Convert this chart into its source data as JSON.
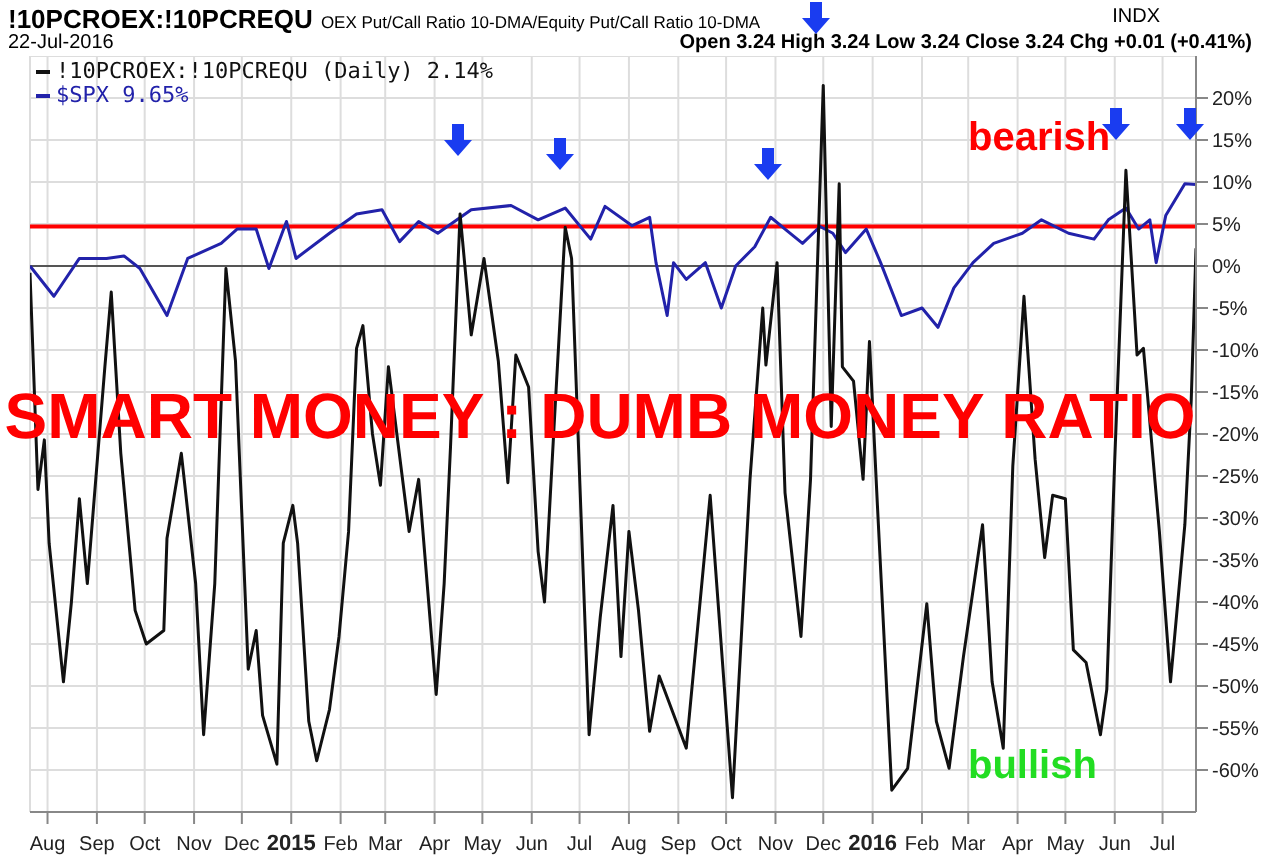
{
  "chart_data": {
    "type": "line",
    "title": "!10PCROEX:!10PCREQU",
    "subtitle": "OEX Put/Call Ratio 10-DMA/Equity Put/Call Ratio 10-DMA",
    "annotations": [
      "INDX",
      "22-Jul-2016",
      "Open 3.24 High 3.24 Low 3.24 Close 3.24 Chg +0.01 (+0.41%)",
      "SMART MONEY : DUMB MONEY RATIO",
      "bearish",
      "bullish"
    ],
    "series": [
      {
        "name": "!10PCROEX:!10PCREQU (Daily) 2.14%",
        "color": "#111111",
        "x": [
          "2014-07-21",
          "2014-07-26",
          "2014-07-30",
          "2014-08-02",
          "2014-08-11",
          "2014-08-16",
          "2014-08-21",
          "2014-08-26",
          "2014-09-06",
          "2014-09-10",
          "2014-09-16",
          "2014-09-25",
          "2014-10-02",
          "2014-10-13",
          "2014-10-15",
          "2014-10-24",
          "2014-11-02",
          "2014-11-07",
          "2014-11-14",
          "2014-11-21",
          "2014-11-27",
          "2014-12-05",
          "2014-12-10",
          "2014-12-14",
          "2014-12-23",
          "2014-12-27",
          "2015-01-02",
          "2015-01-05",
          "2015-01-12",
          "2015-01-17",
          "2015-01-25",
          "2015-01-31",
          "2015-02-06",
          "2015-02-11",
          "2015-02-15",
          "2015-02-21",
          "2015-02-26",
          "2015-03-03",
          "2015-03-16",
          "2015-03-22",
          "2015-04-02",
          "2015-04-07",
          "2015-04-11",
          "2015-04-17",
          "2015-04-24",
          "2015-05-02",
          "2015-05-11",
          "2015-05-17",
          "2015-05-22",
          "2015-05-30",
          "2015-06-05",
          "2015-06-09",
          "2015-06-15",
          "2015-06-22",
          "2015-06-26",
          "2015-07-07",
          "2015-07-14",
          "2015-07-22",
          "2015-07-27",
          "2015-08-01",
          "2015-08-07",
          "2015-08-14",
          "2015-08-20",
          "2015-09-06",
          "2015-09-21",
          "2015-10-05",
          "2015-10-16",
          "2015-10-24",
          "2015-10-26",
          "2015-11-02",
          "2015-11-07",
          "2015-11-17",
          "2015-11-23",
          "2015-12-01",
          "2015-12-06",
          "2015-12-11",
          "2015-12-13",
          "2015-12-20",
          "2015-12-26",
          "2015-12-30",
          "2016-01-04",
          "2016-01-13",
          "2016-01-23",
          "2016-02-04",
          "2016-02-10",
          "2016-02-18",
          "2016-02-27",
          "2016-03-10",
          "2016-03-16",
          "2016-03-23",
          "2016-03-29",
          "2016-04-05",
          "2016-04-12",
          "2016-04-18",
          "2016-04-23",
          "2016-05-01",
          "2016-05-06",
          "2016-05-14",
          "2016-05-23",
          "2016-05-27",
          "2016-06-01",
          "2016-06-08",
          "2016-06-15",
          "2016-06-19",
          "2016-06-29",
          "2016-07-06",
          "2016-07-15",
          "2016-07-19",
          "2016-07-22"
        ],
        "values": [
          -0.8,
          -26.6,
          -20.7,
          -33,
          -49.5,
          -40,
          -27.7,
          -37.8,
          -12,
          -3.1,
          -22.3,
          -41,
          -45,
          -43.4,
          -32.4,
          -22.3,
          -37.8,
          -55.8,
          -37.8,
          -0.3,
          -11.3,
          -48,
          -43.4,
          -53.5,
          -59.3,
          -33,
          -28.5,
          -33,
          -54.2,
          -58.9,
          -52.8,
          -44.1,
          -31.6,
          -9.8,
          -7.1,
          -20,
          -26.1,
          -12,
          -31.6,
          -25.4,
          -51,
          -37.8,
          -21.5,
          6.2,
          -8.2,
          0.9,
          -11.3,
          -25.8,
          -10.6,
          -14.4,
          -34,
          -40,
          -19.1,
          4.6,
          0.9,
          -55.8,
          -41.8,
          -28.5,
          -46.5,
          -31.6,
          -41,
          -55.4,
          -48.8,
          -57.4,
          -27.3,
          -63.3,
          -25.4,
          -5,
          -11.8,
          0.4,
          -27,
          -44.1,
          -25.4,
          21.5,
          -19.1,
          9.8,
          -12,
          -13.7,
          -25.4,
          -9,
          -28.5,
          -62.4,
          -59.8,
          -40.2,
          -54.2,
          -59.8,
          -46.5,
          -30.8,
          -49.5,
          -57.4,
          -23.8,
          -3.6,
          -23,
          -34.7,
          -27.3,
          -27.7,
          -45.7,
          -47.2,
          -55.8,
          -50.4,
          -23,
          11.4,
          -10.6,
          -9.8,
          -31.6,
          -49.5,
          -30.8,
          -16,
          2.1
        ]
      },
      {
        "name": "$SPX 9.65%",
        "color": "#2222aa",
        "x": [
          "2014-07-21",
          "2014-08-05",
          "2014-08-21",
          "2014-09-07",
          "2014-09-18",
          "2014-09-28",
          "2014-10-15",
          "2014-10-28",
          "2014-11-18",
          "2014-11-28",
          "2014-12-10",
          "2014-12-18",
          "2014-12-29",
          "2015-01-04",
          "2015-01-25",
          "2015-02-11",
          "2015-02-27",
          "2015-03-10",
          "2015-03-22",
          "2015-04-03",
          "2015-04-24",
          "2015-05-19",
          "2015-06-05",
          "2015-06-22",
          "2015-07-08",
          "2015-07-17",
          "2015-08-03",
          "2015-08-14",
          "2015-08-18",
          "2015-08-25",
          "2015-08-29",
          "2015-09-06",
          "2015-09-18",
          "2015-09-28",
          "2015-10-07",
          "2015-10-19",
          "2015-10-29",
          "2015-11-07",
          "2015-11-18",
          "2015-11-29",
          "2015-12-07",
          "2015-12-15",
          "2015-12-28",
          "2016-01-06",
          "2016-01-19",
          "2016-02-01",
          "2016-02-11",
          "2016-02-21",
          "2016-03-04",
          "2016-03-17",
          "2016-04-04",
          "2016-04-16",
          "2016-05-03",
          "2016-05-19",
          "2016-05-28",
          "2016-06-08",
          "2016-06-16",
          "2016-06-23",
          "2016-06-27",
          "2016-07-03",
          "2016-07-15",
          "2016-07-22"
        ],
        "values": [
          0,
          -3.6,
          0.9,
          0.9,
          1.2,
          -0.3,
          -5.9,
          0.9,
          2.7,
          4.4,
          4.4,
          -0.3,
          5.3,
          0.9,
          3.9,
          6.2,
          6.7,
          2.9,
          5.3,
          3.9,
          6.7,
          7.2,
          5.5,
          6.9,
          3.2,
          7.1,
          4.8,
          5.8,
          0.4,
          -5.9,
          0.4,
          -1.6,
          0.4,
          -5,
          0,
          2.3,
          5.8,
          4.4,
          2.7,
          4.7,
          3.9,
          1.6,
          4.4,
          0.4,
          -5.9,
          -5,
          -7.3,
          -2.6,
          0.4,
          2.7,
          3.9,
          5.5,
          3.9,
          3.2,
          5.5,
          6.9,
          4.4,
          5.5,
          0.4,
          6,
          9.8,
          9.7
        ]
      }
    ],
    "xlim": [
      "2014-07-21",
      "2016-07-22"
    ],
    "xticks": [
      {
        "value": "2014-08-01",
        "label": "Aug"
      },
      {
        "value": "2014-09-01",
        "label": "Sep"
      },
      {
        "value": "2014-10-01",
        "label": "Oct"
      },
      {
        "value": "2014-11-01",
        "label": "Nov"
      },
      {
        "value": "2014-12-01",
        "label": "Dec"
      },
      {
        "value": "2015-01-01",
        "label": "2015"
      },
      {
        "value": "2015-02-01",
        "label": "Feb"
      },
      {
        "value": "2015-03-01",
        "label": "Mar"
      },
      {
        "value": "2015-04-01",
        "label": "Apr"
      },
      {
        "value": "2015-05-01",
        "label": "May"
      },
      {
        "value": "2015-06-01",
        "label": "Jun"
      },
      {
        "value": "2015-07-01",
        "label": "Jul"
      },
      {
        "value": "2015-08-01",
        "label": "Aug"
      },
      {
        "value": "2015-09-01",
        "label": "Sep"
      },
      {
        "value": "2015-10-01",
        "label": "Oct"
      },
      {
        "value": "2015-11-01",
        "label": "Nov"
      },
      {
        "value": "2015-12-01",
        "label": "Dec"
      },
      {
        "value": "2016-01-01",
        "label": "2016"
      },
      {
        "value": "2016-02-01",
        "label": "Feb"
      },
      {
        "value": "2016-03-01",
        "label": "Mar"
      },
      {
        "value": "2016-04-01",
        "label": "Apr"
      },
      {
        "value": "2016-05-01",
        "label": "May"
      },
      {
        "value": "2016-06-01",
        "label": "Jun"
      },
      {
        "value": "2016-07-01",
        "label": "Jul"
      }
    ],
    "ylim": [
      -65,
      25
    ],
    "yticks": [
      {
        "value": -60,
        "label": "-60%"
      },
      {
        "value": -55,
        "label": "-55%"
      },
      {
        "value": -50,
        "label": "-50%"
      },
      {
        "value": -45,
        "label": "-45%"
      },
      {
        "value": -40,
        "label": "-40%"
      },
      {
        "value": -35,
        "label": "-35%"
      },
      {
        "value": -30,
        "label": "-30%"
      },
      {
        "value": -25,
        "label": "-25%"
      },
      {
        "value": -20,
        "label": "-20%"
      },
      {
        "value": -15,
        "label": "-15%"
      },
      {
        "value": -10,
        "label": "-10%"
      },
      {
        "value": -5,
        "label": "-5%"
      },
      {
        "value": 0,
        "label": "0%"
      },
      {
        "value": 5,
        "label": "5%"
      },
      {
        "value": 10,
        "label": "10%"
      },
      {
        "value": 15,
        "label": "15%"
      },
      {
        "value": 20,
        "label": "20%"
      }
    ],
    "ref_lines": [
      {
        "axis": "y",
        "value": 0,
        "color": "#555555"
      },
      {
        "axis": "y",
        "value": 4.7,
        "color": "#ff0000"
      }
    ],
    "grid": true,
    "legend": "top left",
    "marker": "none",
    "line_style": "solid"
  }
}
